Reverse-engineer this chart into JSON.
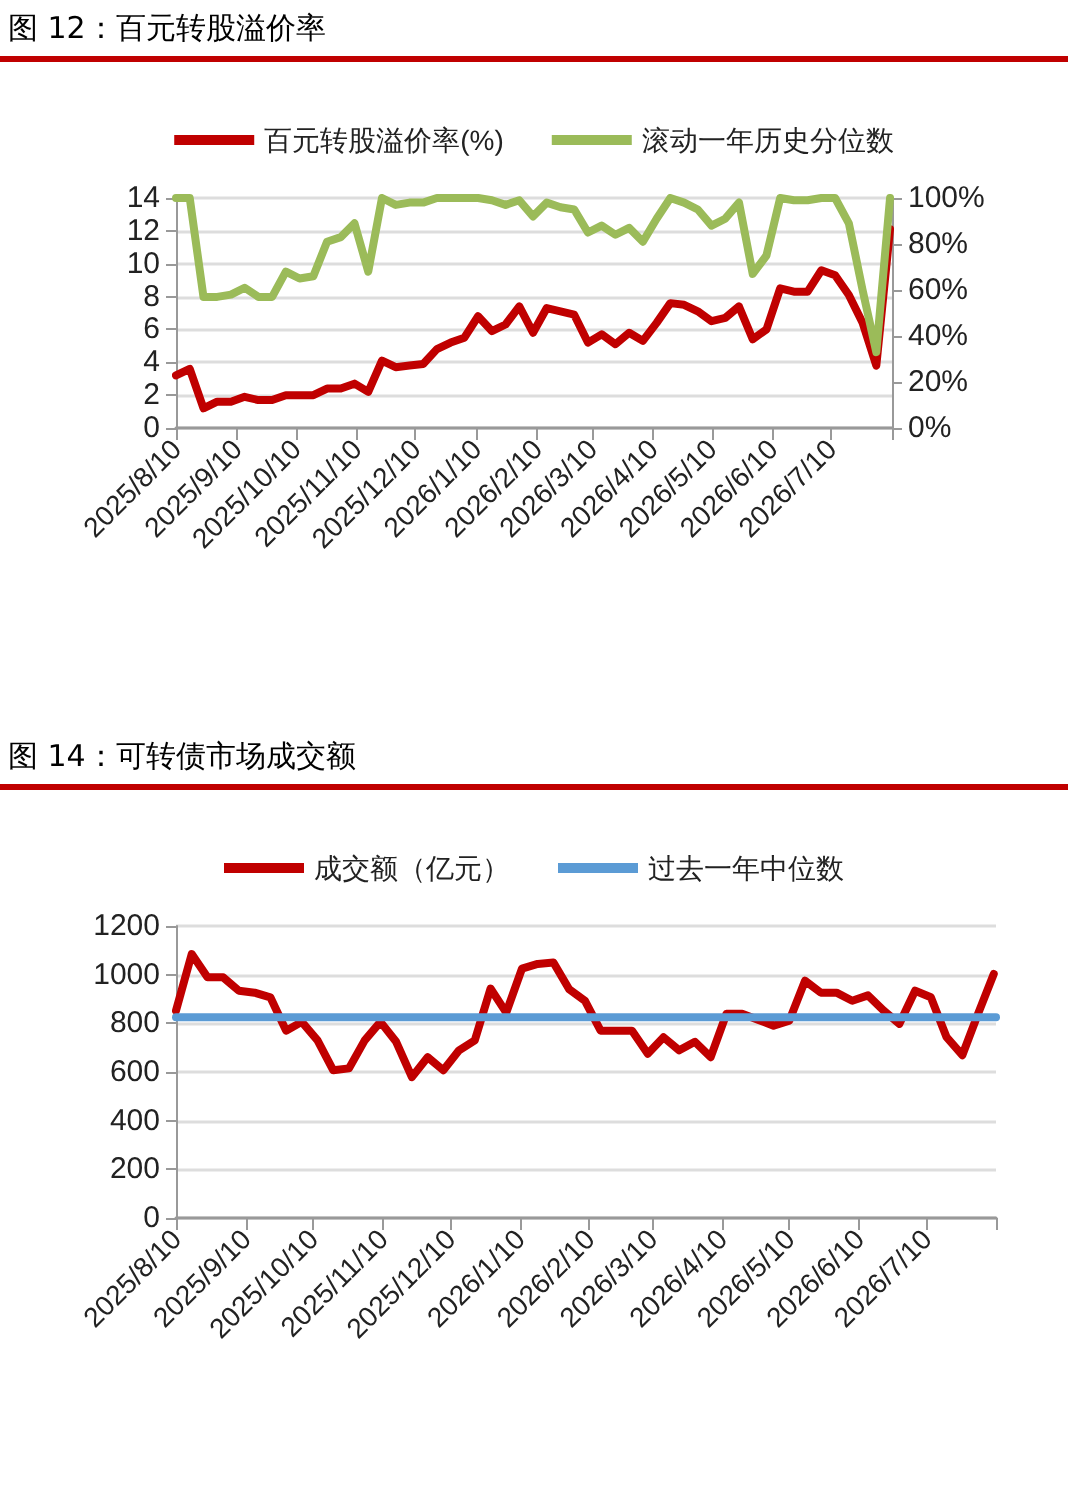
{
  "chart_data": [
    {
      "type": "line",
      "title": "图 12：百元转股溢价率",
      "legend": "top",
      "grid": "y",
      "marker": "none",
      "line_style": "solid",
      "x": [
        "2025-08-10",
        "2025-08-17",
        "2025-08-24",
        "2025-08-31",
        "2025-09-07",
        "2025-09-14",
        "2025-09-21",
        "2025-09-28",
        "2025-10-05",
        "2025-10-12",
        "2025-10-19",
        "2025-10-26",
        "2025-11-02",
        "2025-11-09",
        "2025-11-16",
        "2025-11-23",
        "2025-11-30",
        "2025-12-07",
        "2025-12-14",
        "2025-12-21",
        "2025-12-28",
        "2026-01-04",
        "2026-01-11",
        "2026-01-18",
        "2026-01-25",
        "2026-02-01",
        "2026-02-08",
        "2026-02-15",
        "2026-02-22",
        "2026-03-01",
        "2026-03-08",
        "2026-03-15",
        "2026-03-22",
        "2026-03-29",
        "2026-04-05",
        "2026-04-12",
        "2026-04-19",
        "2026-04-26",
        "2026-05-03",
        "2026-05-10",
        "2026-05-17",
        "2026-05-24",
        "2026-05-31",
        "2026-06-07",
        "2026-06-14",
        "2026-06-21",
        "2026-06-28",
        "2026-07-05",
        "2026-07-12",
        "2026-07-19",
        "2026-07-26",
        "2026-08-02",
        "2026-08-09"
      ],
      "xlim": [
        "2025-08-10",
        "2026-08-10"
      ],
      "xticks": [
        {
          "value": "2025-08-10",
          "label": "2025/8/10"
        },
        {
          "value": "2025-09-10",
          "label": "2025/9/10"
        },
        {
          "value": "2025-10-10",
          "label": "2025/10/10"
        },
        {
          "value": "2025-11-10",
          "label": "2025/11/10"
        },
        {
          "value": "2025-12-10",
          "label": "2025/12/10"
        },
        {
          "value": "2026-01-10",
          "label": "2026/1/10"
        },
        {
          "value": "2026-02-10",
          "label": "2026/2/10"
        },
        {
          "value": "2026-03-10",
          "label": "2026/3/10"
        },
        {
          "value": "2026-04-10",
          "label": "2026/4/10"
        },
        {
          "value": "2026-05-10",
          "label": "2026/5/10"
        },
        {
          "value": "2026-06-10",
          "label": "2026/6/10"
        },
        {
          "value": "2026-07-10",
          "label": "2026/7/10"
        },
        {
          "value": "2026-08-10",
          "label": null
        }
      ],
      "ylim": [
        0,
        14
      ],
      "yticks": [
        0,
        2,
        4,
        6,
        8,
        10,
        12,
        14
      ],
      "y2lim": [
        0,
        100
      ],
      "y2ticks": [
        {
          "value": 0,
          "label": "0%"
        },
        {
          "value": 20,
          "label": "20%"
        },
        {
          "value": 40,
          "label": "40%"
        },
        {
          "value": 60,
          "label": "60%"
        },
        {
          "value": 80,
          "label": "80%"
        },
        {
          "value": 100,
          "label": "100%"
        }
      ],
      "series": [
        {
          "name": "百元转股溢价率(%)",
          "color": "#c00000",
          "values": [
            3.2,
            3.6,
            1.2,
            1.6,
            1.6,
            1.9,
            1.7,
            1.7,
            2.0,
            2.0,
            2.0,
            2.4,
            2.4,
            2.7,
            2.2,
            4.1,
            3.7,
            3.8,
            3.9,
            4.8,
            5.2,
            5.5,
            6.8,
            5.9,
            6.3,
            7.4,
            5.8,
            7.3,
            7.1,
            6.9,
            5.2,
            5.7,
            5.1,
            5.8,
            5.3,
            6.4,
            7.6,
            7.5,
            7.1,
            6.5,
            6.7,
            7.4,
            5.4,
            6.0,
            8.5,
            8.3,
            8.3,
            9.6,
            9.3,
            8.1,
            6.4,
            3.8,
            12.1
          ]
        },
        {
          "name": "滚动一年历史分位数",
          "color": "#9bbb59",
          "axis": "y2",
          "values": [
            100,
            100,
            57,
            57,
            58,
            61,
            57,
            57,
            68,
            65,
            66,
            81,
            83,
            89,
            68,
            100,
            97,
            98,
            98,
            100,
            100,
            100,
            100,
            99,
            97,
            99,
            92,
            98,
            96,
            95,
            85,
            88,
            84,
            87,
            81,
            91,
            100,
            98,
            95,
            88,
            91,
            98,
            67,
            75,
            100,
            99,
            99,
            100,
            100,
            89,
            60,
            33,
            100
          ]
        }
      ]
    },
    {
      "type": "line",
      "title": "图 14：可转债市场成交额",
      "legend": "top",
      "grid": "y",
      "marker": "none",
      "line_style": "solid",
      "x": [
        "2025-08-10",
        "2025-08-17",
        "2025-08-24",
        "2025-08-31",
        "2025-09-07",
        "2025-09-14",
        "2025-09-21",
        "2025-09-28",
        "2025-10-05",
        "2025-10-12",
        "2025-10-19",
        "2025-10-26",
        "2025-11-02",
        "2025-11-09",
        "2025-11-16",
        "2025-11-23",
        "2025-11-30",
        "2025-12-07",
        "2025-12-14",
        "2025-12-21",
        "2025-12-28",
        "2026-01-04",
        "2026-01-11",
        "2026-01-18",
        "2026-01-25",
        "2026-02-01",
        "2026-02-08",
        "2026-02-15",
        "2026-02-22",
        "2026-03-01",
        "2026-03-08",
        "2026-03-15",
        "2026-03-22",
        "2026-03-29",
        "2026-04-05",
        "2026-04-12",
        "2026-04-19",
        "2026-04-26",
        "2026-05-03",
        "2026-05-10",
        "2026-05-17",
        "2026-05-24",
        "2026-05-31",
        "2026-06-07",
        "2026-06-14",
        "2026-06-21",
        "2026-06-28",
        "2026-07-05",
        "2026-07-12",
        "2026-07-19",
        "2026-07-26",
        "2026-08-02",
        "2026-08-09"
      ],
      "xlim": [
        "2025-08-10",
        "2026-08-10"
      ],
      "xticks": [
        {
          "value": "2025-08-10",
          "label": "2025/8/10"
        },
        {
          "value": "2025-09-10",
          "label": "2025/9/10"
        },
        {
          "value": "2025-10-10",
          "label": "2025/10/10"
        },
        {
          "value": "2025-11-10",
          "label": "2025/11/10"
        },
        {
          "value": "2025-12-10",
          "label": "2025/12/10"
        },
        {
          "value": "2026-01-10",
          "label": "2026/1/10"
        },
        {
          "value": "2026-02-10",
          "label": "2026/2/10"
        },
        {
          "value": "2026-03-10",
          "label": "2026/3/10"
        },
        {
          "value": "2026-04-10",
          "label": "2026/4/10"
        },
        {
          "value": "2026-05-10",
          "label": "2026/5/10"
        },
        {
          "value": "2026-06-10",
          "label": "2026/6/10"
        },
        {
          "value": "2026-07-10",
          "label": "2026/7/10"
        },
        {
          "value": "2026-08-10",
          "label": null
        }
      ],
      "ylim": [
        0,
        1200
      ],
      "yticks": [
        0,
        200,
        400,
        600,
        800,
        1000,
        1200
      ],
      "series": [
        {
          "name": "成交额（亿元）",
          "color": "#c00000",
          "values": [
            852,
            1085,
            989,
            989,
            934,
            926,
            907,
            770,
            806,
            730,
            607,
            615,
            730,
            806,
            724,
            579,
            661,
            607,
            689,
            730,
            943,
            844,
            1025,
            1044,
            1050,
            940,
            893,
            770,
            770,
            770,
            675,
            743,
            689,
            724,
            661,
            839,
            839,
            815,
            790,
            811,
            975,
            926,
            926,
            893,
            915,
            852,
            798,
            934,
            907,
            743,
            669,
            839,
            1003
          ]
        },
        {
          "name": "过去一年中位数",
          "color": "#5b9bd5",
          "x": [
            "2025-08-10",
            "2026-08-10"
          ],
          "values": [
            825,
            825
          ]
        }
      ]
    }
  ]
}
